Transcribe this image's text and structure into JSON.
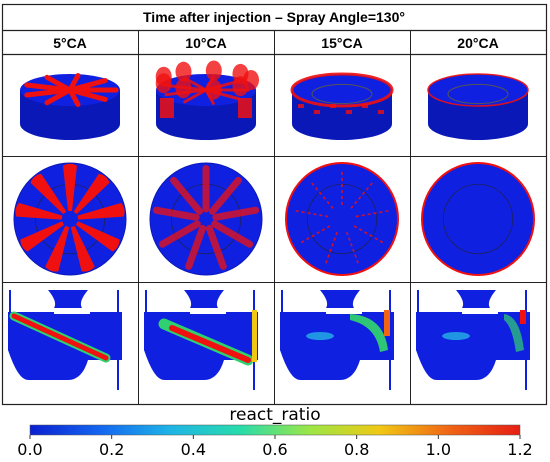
{
  "header": {
    "title": "Time after injection – Spray Angle=130°"
  },
  "columns": [
    {
      "label": "5°CA",
      "spread": 0.05
    },
    {
      "label": "10°CA",
      "spread": 0.55
    },
    {
      "label": "15°CA",
      "spread": 0.8
    },
    {
      "label": "20°CA",
      "spread": 0.95
    }
  ],
  "rows": [
    "isometric-view",
    "top-view",
    "cross-section-view"
  ],
  "colorbar": {
    "title": "react_ratio",
    "ticks": [
      "0.0",
      "0.2",
      "0.4",
      "0.6",
      "0.8",
      "1.0",
      "1.2"
    ],
    "min": 0.0,
    "max": 1.2,
    "stops": [
      "#0a1fd0",
      "#1466f0",
      "#1eb4e6",
      "#28dcaa",
      "#9be646",
      "#f0c814",
      "#f06414",
      "#e61e14"
    ]
  },
  "colors": {
    "domain_blue": "#1020e0",
    "spray_red": "#f01010",
    "grid_line": "#222222"
  }
}
